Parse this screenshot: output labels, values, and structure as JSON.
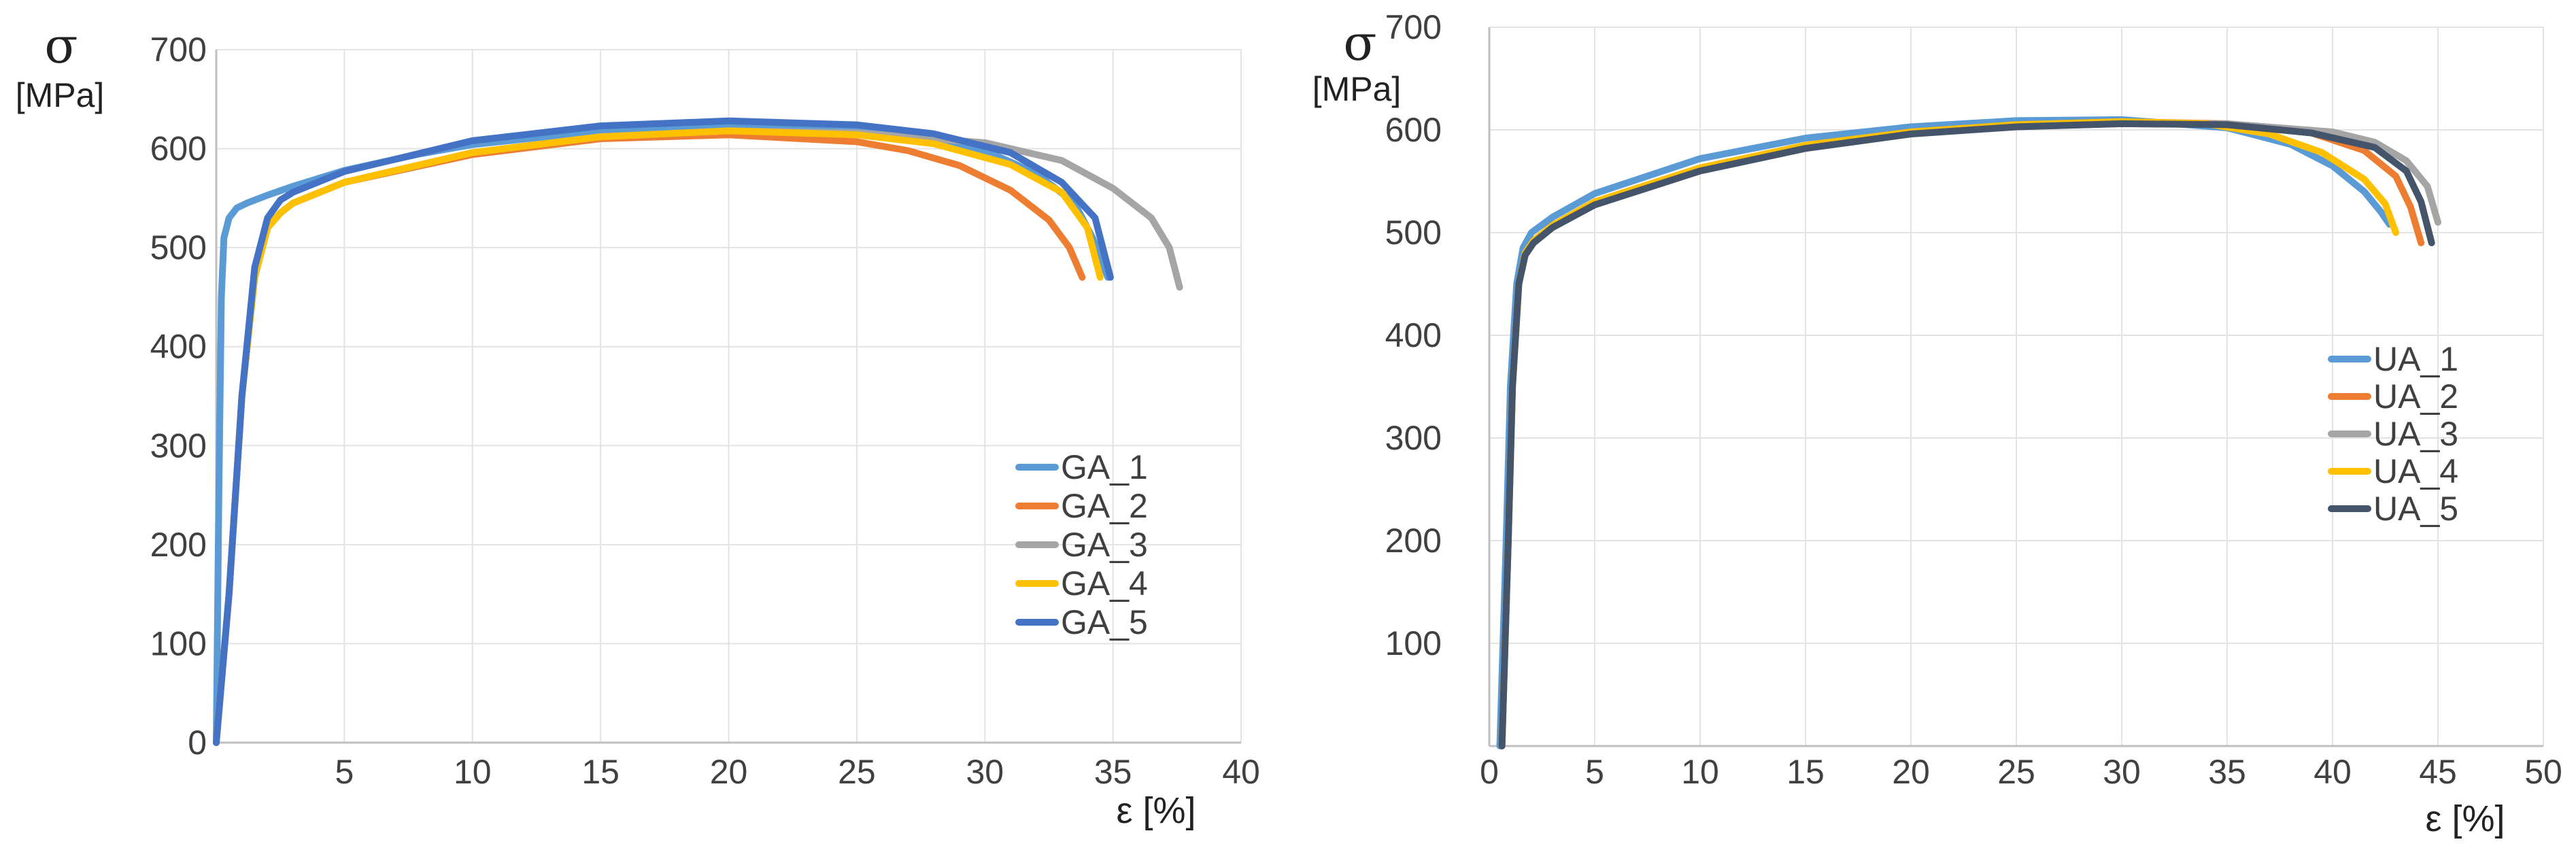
{
  "chart_data": [
    {
      "type": "line",
      "title": "",
      "ylabel_symbol": "σ",
      "ylabel_unit": "[MPa]",
      "xlabel": "ε [%]",
      "xlim": [
        0,
        40
      ],
      "ylim": [
        0,
        700
      ],
      "xticks": [
        5,
        10,
        15,
        20,
        25,
        30,
        35,
        40
      ],
      "yticks": [
        0,
        100,
        200,
        300,
        400,
        500,
        600,
        700
      ],
      "grid": true,
      "legend_position": "right-middle",
      "series": [
        {
          "name": "GA_1",
          "color": "#5B9BD5",
          "x": [
            0,
            0.1,
            0.2,
            0.3,
            0.5,
            0.8,
            1.2,
            2,
            3,
            5,
            8,
            10,
            15,
            20,
            25,
            28,
            30,
            32,
            33.5,
            34.2,
            34.8
          ],
          "y": [
            0,
            250,
            450,
            510,
            530,
            540,
            545,
            553,
            562,
            578,
            595,
            604,
            618,
            624,
            620,
            612,
            598,
            575,
            545,
            510,
            470
          ]
        },
        {
          "name": "GA_2",
          "color": "#ED7D31",
          "x": [
            0,
            0.5,
            1.0,
            1.5,
            2.0,
            2.5,
            3,
            5,
            10,
            15,
            20,
            25,
            27,
            29,
            31,
            32.5,
            33.3,
            33.8
          ],
          "y": [
            0,
            150,
            350,
            470,
            520,
            535,
            545,
            566,
            594,
            610,
            614,
            607,
            598,
            583,
            558,
            528,
            500,
            470
          ]
        },
        {
          "name": "GA_3",
          "color": "#A5A5A5",
          "x": [
            0,
            0.5,
            1.0,
            1.5,
            2.0,
            2.5,
            3,
            5,
            10,
            15,
            20,
            25,
            30,
            33,
            35,
            36.5,
            37.2,
            37.6
          ],
          "y": [
            0,
            150,
            350,
            470,
            520,
            535,
            545,
            566,
            596,
            612,
            618,
            616,
            606,
            588,
            560,
            530,
            500,
            460
          ]
        },
        {
          "name": "GA_4",
          "color": "#FFC000",
          "x": [
            0,
            0.5,
            1.0,
            1.5,
            2.0,
            2.5,
            3,
            5,
            10,
            15,
            20,
            25,
            28,
            31,
            33,
            34,
            34.5
          ],
          "y": [
            0,
            150,
            350,
            470,
            520,
            535,
            545,
            566,
            596,
            612,
            618,
            614,
            605,
            584,
            556,
            520,
            470
          ]
        },
        {
          "name": "GA_5",
          "color": "#4472C4",
          "x": [
            0,
            0.5,
            1.0,
            1.5,
            2.0,
            2.5,
            3,
            5,
            10,
            15,
            20,
            25,
            28,
            31,
            33,
            34.3,
            34.9
          ],
          "y": [
            0,
            150,
            350,
            480,
            530,
            548,
            556,
            577,
            608,
            623,
            628,
            624,
            615,
            596,
            566,
            530,
            470
          ]
        }
      ]
    },
    {
      "type": "line",
      "title": "",
      "ylabel_symbol": "σ",
      "ylabel_unit": "[MPa]",
      "xlabel": "ε [%]",
      "xlim": [
        0,
        50
      ],
      "ylim": [
        0,
        700
      ],
      "xticks": [
        0,
        5,
        10,
        15,
        20,
        25,
        30,
        35,
        40,
        45,
        50
      ],
      "yticks": [
        100,
        200,
        300,
        400,
        500,
        600,
        700
      ],
      "grid": true,
      "legend_position": "right-middle",
      "series": [
        {
          "name": "UA_1",
          "color": "#5B9BD5",
          "x": [
            0.5,
            0.8,
            1.0,
            1.3,
            1.6,
            2,
            3,
            5,
            10,
            15,
            20,
            25,
            30,
            35,
            38,
            40,
            41.5,
            42.3,
            42.7
          ],
          "y": [
            0,
            200,
            350,
            450,
            485,
            500,
            515,
            538,
            572,
            592,
            603,
            609,
            610,
            602,
            586,
            565,
            540,
            520,
            508
          ]
        },
        {
          "name": "UA_2",
          "color": "#ED7D31",
          "x": [
            0.6,
            0.9,
            1.1,
            1.4,
            1.7,
            2.1,
            3,
            5,
            10,
            15,
            20,
            25,
            30,
            35,
            39,
            41.5,
            43,
            43.7,
            44.2
          ],
          "y": [
            0,
            200,
            350,
            450,
            480,
            492,
            507,
            530,
            563,
            585,
            598,
            605,
            608,
            606,
            597,
            580,
            555,
            525,
            490
          ]
        },
        {
          "name": "UA_3",
          "color": "#A5A5A5",
          "x": [
            0.6,
            0.9,
            1.1,
            1.4,
            1.7,
            2.1,
            3,
            5,
            10,
            15,
            20,
            25,
            30,
            35,
            40,
            42,
            43.5,
            44.5,
            45
          ],
          "y": [
            0,
            200,
            350,
            450,
            478,
            490,
            505,
            527,
            560,
            582,
            596,
            603,
            606,
            606,
            598,
            588,
            570,
            545,
            510
          ]
        },
        {
          "name": "UA_4",
          "color": "#FFC000",
          "x": [
            0.6,
            0.9,
            1.1,
            1.4,
            1.7,
            2.1,
            3,
            5,
            10,
            15,
            20,
            25,
            30,
            34,
            37,
            39.5,
            41.5,
            42.5,
            43
          ],
          "y": [
            0,
            200,
            350,
            450,
            480,
            492,
            507,
            530,
            563,
            585,
            598,
            605,
            608,
            606,
            596,
            578,
            552,
            528,
            500
          ]
        },
        {
          "name": "UA_5",
          "color": "#44546A",
          "x": [
            0.6,
            0.9,
            1.1,
            1.4,
            1.7,
            2.1,
            3,
            5,
            10,
            15,
            20,
            25,
            30,
            35,
            39,
            42,
            43.5,
            44.2,
            44.7
          ],
          "y": [
            0,
            200,
            350,
            450,
            478,
            490,
            505,
            527,
            560,
            582,
            596,
            603,
            606,
            605,
            597,
            583,
            560,
            530,
            490
          ]
        }
      ]
    }
  ]
}
